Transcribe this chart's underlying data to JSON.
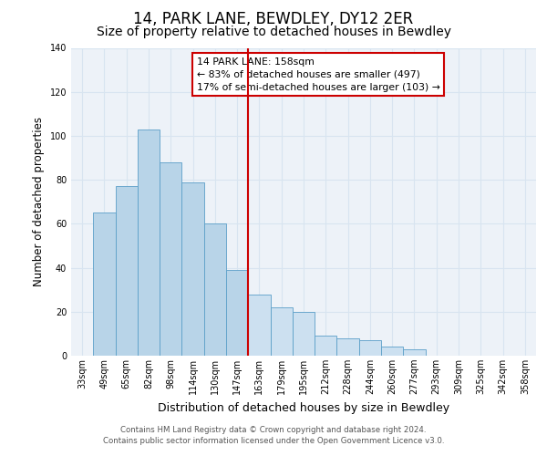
{
  "title": "14, PARK LANE, BEWDLEY, DY12 2ER",
  "subtitle": "Size of property relative to detached houses in Bewdley",
  "xlabel": "Distribution of detached houses by size in Bewdley",
  "ylabel": "Number of detached properties",
  "bar_labels": [
    "33sqm",
    "49sqm",
    "65sqm",
    "82sqm",
    "98sqm",
    "114sqm",
    "130sqm",
    "147sqm",
    "163sqm",
    "179sqm",
    "195sqm",
    "212sqm",
    "228sqm",
    "244sqm",
    "260sqm",
    "277sqm",
    "293sqm",
    "309sqm",
    "325sqm",
    "342sqm",
    "358sqm"
  ],
  "bar_values": [
    0,
    65,
    77,
    103,
    88,
    79,
    60,
    39,
    28,
    22,
    20,
    9,
    8,
    7,
    4,
    3,
    0,
    0,
    0,
    0,
    0
  ],
  "bar_color_left": "#b8d4e8",
  "bar_color_right": "#cce0f0",
  "bar_edge_color": "#5b9fc8",
  "vline_color": "#cc0000",
  "annotation_title": "14 PARK LANE: 158sqm",
  "annotation_line1": "← 83% of detached houses are smaller (497)",
  "annotation_line2": "17% of semi-detached houses are larger (103) →",
  "annotation_box_color": "#ffffff",
  "annotation_box_edge": "#cc0000",
  "ylim": [
    0,
    140
  ],
  "yticks": [
    0,
    20,
    40,
    60,
    80,
    100,
    120,
    140
  ],
  "footnote1": "Contains HM Land Registry data © Crown copyright and database right 2024.",
  "footnote2": "Contains public sector information licensed under the Open Government Licence v3.0.",
  "title_fontsize": 12,
  "subtitle_fontsize": 10,
  "xlabel_fontsize": 9,
  "ylabel_fontsize": 8.5,
  "tick_fontsize": 7,
  "bg_color": "#edf2f8",
  "grid_color": "#d8e4f0",
  "fig_bg_color": "#ffffff"
}
